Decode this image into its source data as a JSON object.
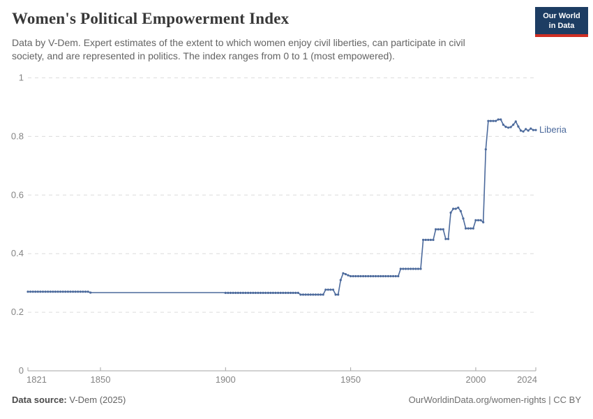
{
  "header": {
    "title": "Women's Political Empowerment Index",
    "subtitle_line1": "Data by V-Dem. Expert estimates of the extent to which women enjoy civil liberties, can participate in civil",
    "subtitle_line2": "society, and are represented in politics. The index ranges from 0 to 1 (most empowered).",
    "logo": {
      "line1": "Our World",
      "line2": "in Data",
      "bg_color": "#1d3d63",
      "stripe_color": "#cf2f23"
    }
  },
  "chart_data": {
    "type": "line",
    "title": "Women's Political Empowerment Index",
    "entity_label": "Liberia",
    "line_color": "#4C6A9C",
    "grid_color": "#dcdcdc",
    "axis_color": "#a5a5a5",
    "tick_label_color": "#848484",
    "x_range": [
      1821,
      2024
    ],
    "y_range": [
      0,
      1
    ],
    "grid": true,
    "legend_position": "end-of-line",
    "y_ticks": [
      {
        "label": "0",
        "value": 0
      },
      {
        "label": "0.2",
        "value": 0.2
      },
      {
        "label": "0.4",
        "value": 0.4
      },
      {
        "label": "0.6",
        "value": 0.6
      },
      {
        "label": "0.8",
        "value": 0.8
      },
      {
        "label": "1",
        "value": 1
      }
    ],
    "x_ticks": [
      {
        "label": "1821",
        "year": 1821
      },
      {
        "label": "1850",
        "year": 1850
      },
      {
        "label": "1900",
        "year": 1900
      },
      {
        "label": "1950",
        "year": 1950
      },
      {
        "label": "2000",
        "year": 2000
      },
      {
        "label": "2024",
        "year": 2024
      }
    ],
    "marker_gap_years": [
      1847,
      1899
    ],
    "series": [
      {
        "name": "Liberia",
        "segments": [
          {
            "from": 1821,
            "to": 1845,
            "value": 0.27
          },
          {
            "from": 1846,
            "to": 1899,
            "value": 0.267
          },
          {
            "from": 1900,
            "to": 1929,
            "value": 0.266
          },
          {
            "from": 1930,
            "to": 1939,
            "value": 0.26
          },
          {
            "from": 1940,
            "to": 1943,
            "value": 0.277
          },
          {
            "from": 1944,
            "to": 1945,
            "value": 0.26
          },
          {
            "year": 1946,
            "value": 0.31
          },
          {
            "year": 1947,
            "value": 0.333
          },
          {
            "year": 1948,
            "value": 0.33
          },
          {
            "year": 1949,
            "value": 0.326
          },
          {
            "from": 1950,
            "to": 1969,
            "value": 0.323
          },
          {
            "from": 1970,
            "to": 1978,
            "value": 0.348
          },
          {
            "from": 1979,
            "to": 1983,
            "value": 0.447
          },
          {
            "from": 1984,
            "to": 1987,
            "value": 0.483
          },
          {
            "from": 1988,
            "to": 1989,
            "value": 0.45
          },
          {
            "year": 1990,
            "value": 0.54
          },
          {
            "from": 1991,
            "to": 1992,
            "value": 0.553
          },
          {
            "year": 1993,
            "value": 0.557
          },
          {
            "year": 1994,
            "value": 0.545
          },
          {
            "year": 1995,
            "value": 0.52
          },
          {
            "from": 1996,
            "to": 1999,
            "value": 0.486
          },
          {
            "from": 2000,
            "to": 2002,
            "value": 0.514
          },
          {
            "year": 2003,
            "value": 0.507
          },
          {
            "year": 2004,
            "value": 0.756
          },
          {
            "from": 2005,
            "to": 2008,
            "value": 0.853
          },
          {
            "from": 2009,
            "to": 2010,
            "value": 0.858
          },
          {
            "year": 2011,
            "value": 0.84
          },
          {
            "year": 2012,
            "value": 0.833
          },
          {
            "year": 2013,
            "value": 0.83
          },
          {
            "year": 2014,
            "value": 0.832
          },
          {
            "year": 2015,
            "value": 0.84
          },
          {
            "year": 2016,
            "value": 0.851
          },
          {
            "year": 2017,
            "value": 0.834
          },
          {
            "year": 2018,
            "value": 0.82
          },
          {
            "year": 2019,
            "value": 0.817
          },
          {
            "year": 2020,
            "value": 0.825
          },
          {
            "year": 2021,
            "value": 0.82
          },
          {
            "year": 2022,
            "value": 0.827
          },
          {
            "year": 2023,
            "value": 0.822
          },
          {
            "year": 2024,
            "value": 0.822
          }
        ]
      }
    ]
  },
  "footer": {
    "source_label": "Data source:",
    "source_value": " V-Dem (2025)",
    "link": "OurWorldinData.org/women-rights | CC BY"
  }
}
